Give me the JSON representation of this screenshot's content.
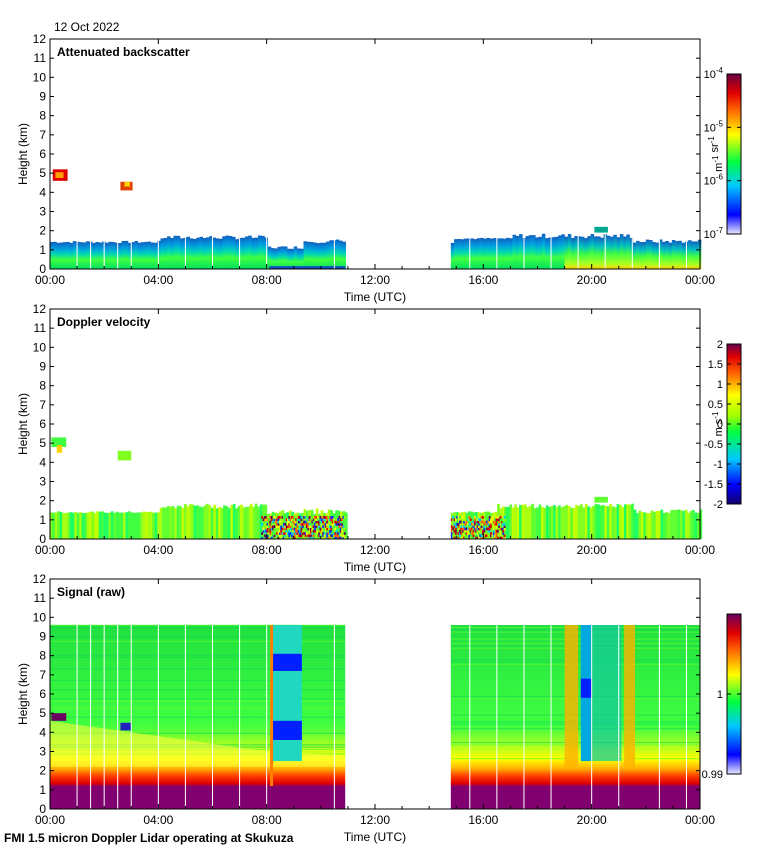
{
  "date_label": "12 Oct 2022",
  "footer": "FMI 1.5 micron Doppler Lidar operating at Skukuza",
  "chart_data": [
    {
      "type": "heatmap",
      "title": "Attenuated backscatter",
      "xlabel": "Time (UTC)",
      "ylabel": "Height (km)",
      "xlim": [
        0,
        24
      ],
      "ylim": [
        0,
        12
      ],
      "x_ticks": [
        "00:00",
        "04:00",
        "08:00",
        "12:00",
        "16:00",
        "20:00",
        "00:00"
      ],
      "y_ticks": [
        "0",
        "1",
        "2",
        "3",
        "4",
        "5",
        "6",
        "7",
        "8",
        "9",
        "10",
        "11",
        "12"
      ],
      "data_gaps_hours": [
        [
          10.9,
          14.8
        ]
      ],
      "colorbar": {
        "label": "m-1 sr-1",
        "scale": "log",
        "range": [
          1e-07,
          0.0001
        ],
        "ticks": [
          "10-4",
          "10-5",
          "10-6",
          "10-7"
        ]
      },
      "features": [
        {
          "kind": "boundary-layer",
          "time_hours": [
            0,
            10.9
          ],
          "top_km": [
            1.3,
            1.8
          ]
        },
        {
          "kind": "boundary-layer",
          "time_hours": [
            14.8,
            24
          ],
          "top_km": [
            1.5,
            1.6
          ]
        },
        {
          "kind": "cloud",
          "time_hours": [
            0.1,
            0.7
          ],
          "height_km": [
            4.6,
            5.3
          ]
        },
        {
          "kind": "cloud",
          "time_hours": [
            2.6,
            3.1
          ],
          "height_km": [
            4.1,
            4.8
          ]
        },
        {
          "kind": "cloud",
          "time_hours": [
            20.1,
            20.6
          ],
          "height_km": [
            1.9,
            2.2
          ]
        }
      ]
    },
    {
      "type": "heatmap",
      "title": "Doppler velocity",
      "xlabel": "Time (UTC)",
      "ylabel": "Height (km)",
      "xlim": [
        0,
        24
      ],
      "ylim": [
        0,
        12
      ],
      "x_ticks": [
        "00:00",
        "04:00",
        "08:00",
        "12:00",
        "16:00",
        "20:00",
        "00:00"
      ],
      "y_ticks": [
        "0",
        "1",
        "2",
        "3",
        "4",
        "5",
        "6",
        "7",
        "8",
        "9",
        "10",
        "11",
        "12"
      ],
      "data_gaps_hours": [
        [
          10.9,
          14.8
        ]
      ],
      "colorbar": {
        "label": "m s-1",
        "scale": "linear",
        "range": [
          -2,
          2
        ],
        "ticks": [
          "2",
          "1.5",
          "1",
          "0.5",
          "0",
          "-0.5",
          "-1",
          "-1.5",
          "-2"
        ]
      }
    },
    {
      "type": "heatmap",
      "title": "Signal (raw)",
      "xlabel": "Time (UTC)",
      "ylabel": "Height (km)",
      "xlim": [
        0,
        24
      ],
      "ylim": [
        0,
        12
      ],
      "x_ticks": [
        "00:00",
        "04:00",
        "08:00",
        "12:00",
        "16:00",
        "20:00",
        "00:00"
      ],
      "y_ticks": [
        "0",
        "1",
        "2",
        "3",
        "4",
        "5",
        "6",
        "7",
        "8",
        "9",
        "10",
        "11",
        "12"
      ],
      "data_gaps_hours": [
        [
          10.9,
          14.8
        ]
      ],
      "data_top_km": 9.6,
      "colorbar": {
        "label": "",
        "scale": "linear",
        "range": [
          0.99,
          1.01
        ],
        "ticks": [
          "1",
          "0.99"
        ]
      }
    }
  ]
}
